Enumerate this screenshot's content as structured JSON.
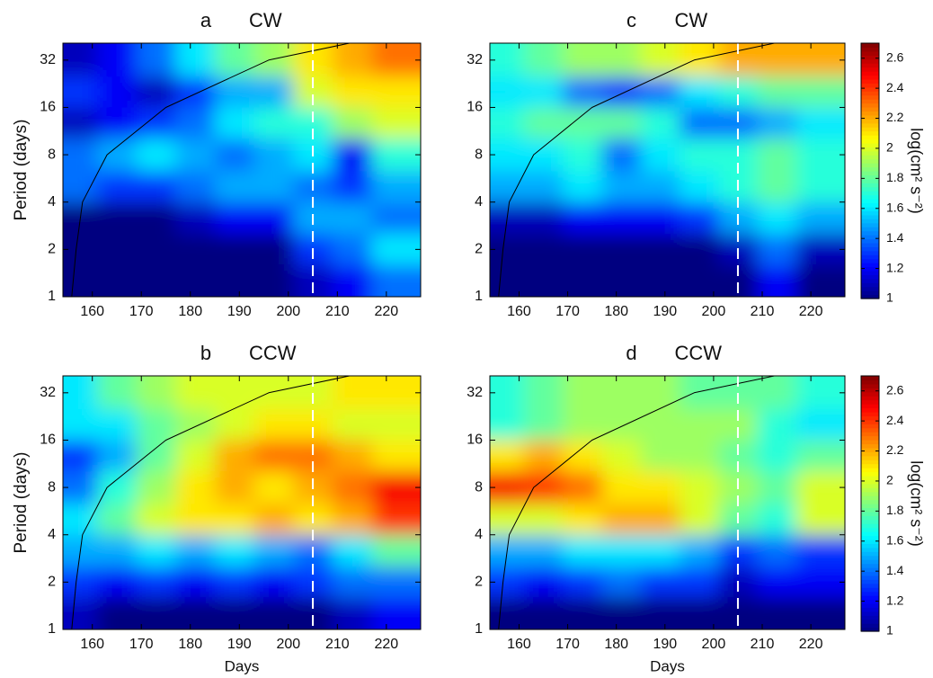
{
  "chart_data": [
    {
      "type": "heatmap",
      "label": "a",
      "title": "CW",
      "ylabel": "Period (days)",
      "x": [
        157,
        165,
        173,
        181,
        189,
        197,
        205,
        213,
        221
      ],
      "y": [
        1.3,
        2,
        3.2,
        5,
        8,
        13,
        20,
        32
      ],
      "z": [
        [
          1,
          1,
          1,
          1,
          1,
          1,
          1.1,
          1.2,
          1.4
        ],
        [
          1,
          1,
          1,
          1,
          1,
          1,
          1.3,
          1.4,
          1.6
        ],
        [
          1,
          1,
          1,
          1.1,
          1.2,
          1.2,
          1.5,
          1.5,
          1.4
        ],
        [
          1.4,
          1.3,
          1.3,
          1.4,
          1.5,
          1.5,
          1.4,
          1.3,
          1.5
        ],
        [
          1.4,
          1.5,
          1.6,
          1.5,
          1.4,
          1.5,
          1.6,
          1.2,
          1.7
        ],
        [
          1.1,
          1.2,
          1.3,
          1.4,
          1.6,
          1.7,
          1.7,
          1.9,
          2.0
        ],
        [
          1.3,
          1.2,
          1.1,
          1.3,
          1.5,
          1.5,
          2.0,
          2.1,
          2.1
        ],
        [
          1.1,
          1.2,
          1.4,
          1.6,
          1.8,
          1.9,
          2.1,
          2.2,
          2.3
        ]
      ],
      "colormap": "jet",
      "xlim": [
        154,
        227
      ],
      "xticks": [
        160,
        170,
        180,
        190,
        200,
        210,
        220
      ],
      "ylim": [
        1,
        41
      ],
      "yticks": [
        1,
        2,
        4,
        8,
        16,
        32
      ],
      "yscale": "log",
      "coi": {
        "x": [
          155.8,
          156.7,
          158,
          163,
          175,
          196,
          212.5
        ],
        "y": [
          1,
          2,
          4,
          8,
          16,
          32,
          41
        ]
      },
      "vline": 205
    },
    {
      "type": "heatmap",
      "label": "b",
      "title": "CCW",
      "ylabel": "Period (days)",
      "xlabel": "Days",
      "x": [
        157,
        165,
        173,
        181,
        189,
        197,
        205,
        213,
        221
      ],
      "y": [
        1.3,
        2,
        3.2,
        5,
        8,
        13,
        20,
        32
      ],
      "z": [
        [
          1.1,
          1,
          1,
          1,
          1,
          1,
          1,
          1.1,
          1.2
        ],
        [
          1.3,
          1.2,
          1.3,
          1.2,
          1.3,
          1.2,
          1.3,
          1.4,
          1.4
        ],
        [
          1.5,
          1.5,
          1.6,
          1.5,
          1.6,
          1.5,
          1.4,
          1.6,
          1.8
        ],
        [
          1.6,
          1.8,
          2.0,
          2.1,
          2.1,
          2.2,
          2.1,
          2.2,
          2.4
        ],
        [
          1.4,
          1.7,
          1.9,
          2.1,
          2.2,
          2.1,
          2.2,
          2.3,
          2.5
        ],
        [
          1.3,
          1.5,
          1.8,
          2.0,
          2.2,
          2.3,
          2.3,
          2.2,
          2.1
        ],
        [
          1.6,
          1.6,
          1.8,
          1.9,
          2.0,
          2.1,
          2.1,
          2.0,
          2.0
        ],
        [
          1.6,
          1.8,
          1.9,
          2.0,
          2.0,
          2.0,
          2.0,
          2.1,
          2.1
        ]
      ],
      "colormap": "jet",
      "xlim": [
        154,
        227
      ],
      "xticks": [
        160,
        170,
        180,
        190,
        200,
        210,
        220
      ],
      "ylim": [
        1,
        41
      ],
      "yticks": [
        1,
        2,
        4,
        8,
        16,
        32
      ],
      "yscale": "log",
      "coi": {
        "x": [
          155.8,
          156.7,
          158,
          163,
          175,
          196,
          212.5
        ],
        "y": [
          1,
          2,
          4,
          8,
          16,
          32,
          41
        ]
      },
      "vline": 205
    },
    {
      "type": "heatmap",
      "label": "c",
      "title": "CW",
      "x": [
        157,
        165,
        173,
        181,
        189,
        197,
        205,
        213,
        221
      ],
      "y": [
        1.3,
        2,
        3.2,
        5,
        8,
        13,
        20,
        32
      ],
      "z": [
        [
          1,
          1,
          1,
          1,
          1,
          1,
          1,
          1.2,
          1
        ],
        [
          1,
          1,
          1,
          1,
          1,
          1,
          1.1,
          1.4,
          1.1
        ],
        [
          1.1,
          1.1,
          1.2,
          1.2,
          1.2,
          1.3,
          1.5,
          1.6,
          1.5
        ],
        [
          1.5,
          1.5,
          1.6,
          1.5,
          1.5,
          1.6,
          1.7,
          1.8,
          1.7
        ],
        [
          1.6,
          1.6,
          1.7,
          1.4,
          1.6,
          1.7,
          1.7,
          1.8,
          1.7
        ],
        [
          1.7,
          1.8,
          1.8,
          1.8,
          1.7,
          1.4,
          1.4,
          1.5,
          1.6
        ],
        [
          1.6,
          1.6,
          1.4,
          1.3,
          1.4,
          1.6,
          1.7,
          1.8,
          1.8
        ],
        [
          1.7,
          1.8,
          1.9,
          1.9,
          2.0,
          2.1,
          2.2,
          2.2,
          2.2
        ]
      ],
      "colormap": "jet",
      "xlim": [
        154,
        227
      ],
      "xticks": [
        160,
        170,
        180,
        190,
        200,
        210,
        220
      ],
      "ylim": [
        1,
        41
      ],
      "yticks": [
        1,
        2,
        4,
        8,
        16,
        32
      ],
      "yscale": "log",
      "coi": {
        "x": [
          155.8,
          156.7,
          158,
          163,
          175,
          196,
          212.5
        ],
        "y": [
          1,
          2,
          4,
          8,
          16,
          32,
          41
        ]
      },
      "vline": 205,
      "colorbar": {
        "label": "log(cm² s⁻²)",
        "lim": [
          1,
          2.7
        ],
        "ticks": [
          1,
          1.2,
          1.4,
          1.6,
          1.8,
          2,
          2.2,
          2.4,
          2.6
        ]
      }
    },
    {
      "type": "heatmap",
      "label": "d",
      "title": "CCW",
      "xlabel": "Days",
      "x": [
        157,
        165,
        173,
        181,
        189,
        197,
        205,
        213,
        221
      ],
      "y": [
        1.3,
        2,
        3.2,
        5,
        8,
        13,
        20,
        32
      ],
      "z": [
        [
          1,
          1,
          1,
          1,
          1,
          1,
          1,
          1,
          1
        ],
        [
          1.3,
          1.2,
          1.3,
          1.4,
          1.3,
          1.3,
          1.1,
          1.2,
          1.2
        ],
        [
          1.5,
          1.5,
          1.6,
          1.6,
          1.6,
          1.5,
          1.3,
          1.4,
          1.3
        ],
        [
          2.0,
          2.0,
          2.1,
          2.2,
          2.2,
          2.0,
          1.8,
          1.7,
          2.0
        ],
        [
          2.5,
          2.4,
          2.3,
          2.1,
          2.1,
          2.0,
          1.9,
          1.8,
          2.0
        ],
        [
          2.1,
          2.2,
          2.1,
          2.0,
          1.9,
          1.9,
          1.8,
          1.7,
          1.8
        ],
        [
          1.7,
          1.8,
          1.9,
          1.9,
          1.9,
          1.9,
          1.9,
          1.7,
          1.6
        ],
        [
          1.7,
          1.8,
          1.9,
          1.9,
          1.9,
          1.8,
          1.8,
          1.8,
          1.7
        ]
      ],
      "colormap": "jet",
      "xlim": [
        154,
        227
      ],
      "xticks": [
        160,
        170,
        180,
        190,
        200,
        210,
        220
      ],
      "ylim": [
        1,
        41
      ],
      "yticks": [
        1,
        2,
        4,
        8,
        16,
        32
      ],
      "yscale": "log",
      "coi": {
        "x": [
          155.8,
          156.7,
          158,
          163,
          175,
          196,
          212.5
        ],
        "y": [
          1,
          2,
          4,
          8,
          16,
          32,
          41
        ]
      },
      "vline": 205,
      "colorbar": {
        "label": "log(cm² s⁻²)",
        "lim": [
          1,
          2.7
        ],
        "ticks": [
          1,
          1.2,
          1.4,
          1.6,
          1.8,
          2,
          2.2,
          2.4,
          2.6
        ]
      }
    }
  ]
}
